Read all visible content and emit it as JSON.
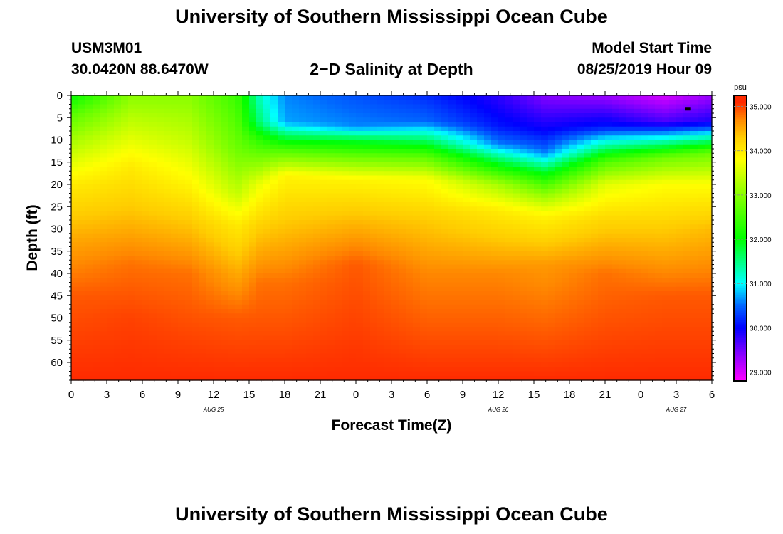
{
  "header": {
    "title_top": "University of Southern Mississippi Ocean Cube",
    "title_bottom": "University of Southern Mississippi Ocean Cube",
    "station_id": "USM3M01",
    "station_coords": "30.0420N 88.6470W",
    "plot_title": "2−D Salinity at Depth",
    "model_start_label": "Model Start Time",
    "model_start_value": "08/25/2019 Hour 09"
  },
  "chart_data": {
    "type": "heatmap",
    "title": "2−D Salinity at Depth",
    "xlabel": "Forecast Time(Z)",
    "ylabel": "Depth (ft)",
    "x_unit": "hours since 08/25 00Z",
    "xlim": [
      0,
      54
    ],
    "ylim": [
      0,
      64
    ],
    "y_inverted": true,
    "x_ticks": [
      {
        "x": 0,
        "label": "0"
      },
      {
        "x": 3,
        "label": "3"
      },
      {
        "x": 6,
        "label": "6"
      },
      {
        "x": 9,
        "label": "9"
      },
      {
        "x": 12,
        "label": "12"
      },
      {
        "x": 15,
        "label": "15"
      },
      {
        "x": 18,
        "label": "18"
      },
      {
        "x": 21,
        "label": "21"
      },
      {
        "x": 24,
        "label": "0"
      },
      {
        "x": 27,
        "label": "3"
      },
      {
        "x": 30,
        "label": "6"
      },
      {
        "x": 33,
        "label": "9"
      },
      {
        "x": 36,
        "label": "12"
      },
      {
        "x": 39,
        "label": "15"
      },
      {
        "x": 42,
        "label": "18"
      },
      {
        "x": 45,
        "label": "21"
      },
      {
        "x": 48,
        "label": "0"
      },
      {
        "x": 51,
        "label": "3"
      },
      {
        "x": 54,
        "label": "6"
      }
    ],
    "date_labels": [
      {
        "x": 12,
        "label": "AUG 25"
      },
      {
        "x": 36,
        "label": "AUG 26"
      },
      {
        "x": 51,
        "label": "AUG 27"
      }
    ],
    "y_ticks": [
      0,
      5,
      10,
      15,
      20,
      25,
      30,
      35,
      40,
      45,
      50,
      55,
      60
    ],
    "colorbar": {
      "unit": "psu",
      "min": 28.8,
      "max": 35.25,
      "tick_values": [
        35,
        34,
        33,
        32,
        31,
        30,
        29
      ],
      "tick_labels": [
        "35.000",
        "34.000",
        "33.000",
        "32.000",
        "31.000",
        "30.000",
        "29.000"
      ],
      "stops": [
        {
          "value": 28.8,
          "color": "#ff00ff"
        },
        {
          "value": 29.4,
          "color": "#8800ff"
        },
        {
          "value": 30.0,
          "color": "#0000ff"
        },
        {
          "value": 30.5,
          "color": "#0066ff"
        },
        {
          "value": 31.0,
          "color": "#00ffff"
        },
        {
          "value": 32.0,
          "color": "#00ff00"
        },
        {
          "value": 33.0,
          "color": "#88ff00"
        },
        {
          "value": 33.8,
          "color": "#ffff00"
        },
        {
          "value": 34.3,
          "color": "#ffcc00"
        },
        {
          "value": 34.7,
          "color": "#ff8800"
        },
        {
          "value": 35.1,
          "color": "#ff2a00"
        }
      ]
    },
    "anchor_columns": [
      {
        "t": 0,
        "profile": [
          [
            0,
            32.0
          ],
          [
            4,
            32.6
          ],
          [
            10,
            33.2
          ],
          [
            20,
            34.0
          ],
          [
            32,
            34.5
          ],
          [
            45,
            34.9
          ],
          [
            64,
            35.1
          ]
        ]
      },
      {
        "t": 5,
        "profile": [
          [
            0,
            33.0
          ],
          [
            8,
            33.5
          ],
          [
            16,
            34.0
          ],
          [
            25,
            34.3
          ],
          [
            38,
            34.8
          ],
          [
            50,
            35.0
          ],
          [
            64,
            35.1
          ]
        ]
      },
      {
        "t": 10,
        "profile": [
          [
            0,
            33.0
          ],
          [
            10,
            33.4
          ],
          [
            20,
            33.9
          ],
          [
            28,
            34.3
          ],
          [
            40,
            34.8
          ],
          [
            55,
            35.0
          ],
          [
            64,
            35.1
          ]
        ]
      },
      {
        "t": 14,
        "profile": [
          [
            0,
            32.4
          ],
          [
            12,
            32.8
          ],
          [
            22,
            33.4
          ],
          [
            29,
            34.0
          ],
          [
            40,
            34.5
          ],
          [
            50,
            34.9
          ],
          [
            64,
            35.1
          ]
        ]
      },
      {
        "t": 16,
        "profile": [
          [
            0,
            31.2
          ],
          [
            6,
            31.5
          ],
          [
            10,
            32.3
          ],
          [
            20,
            33.7
          ],
          [
            30,
            34.3
          ],
          [
            42,
            34.8
          ],
          [
            64,
            35.1
          ]
        ]
      },
      {
        "t": 18,
        "profile": [
          [
            0,
            30.6
          ],
          [
            6,
            30.7
          ],
          [
            8,
            31.3
          ],
          [
            12,
            32.5
          ],
          [
            18,
            33.9
          ],
          [
            28,
            34.3
          ],
          [
            42,
            34.8
          ],
          [
            64,
            35.1
          ]
        ]
      },
      {
        "t": 24,
        "profile": [
          [
            0,
            30.4
          ],
          [
            7,
            30.6
          ],
          [
            10,
            31.8
          ],
          [
            14,
            32.8
          ],
          [
            19,
            33.9
          ],
          [
            28,
            34.4
          ],
          [
            38,
            34.9
          ],
          [
            64,
            35.1
          ]
        ]
      },
      {
        "t": 30,
        "profile": [
          [
            0,
            30.2
          ],
          [
            6,
            30.5
          ],
          [
            10,
            31.6
          ],
          [
            14,
            32.7
          ],
          [
            19,
            33.8
          ],
          [
            28,
            34.3
          ],
          [
            40,
            34.7
          ],
          [
            64,
            35.1
          ]
        ]
      },
      {
        "t": 36,
        "profile": [
          [
            0,
            29.8
          ],
          [
            7,
            30.1
          ],
          [
            11,
            30.6
          ],
          [
            15,
            31.8
          ],
          [
            20,
            33.2
          ],
          [
            26,
            34.0
          ],
          [
            40,
            34.7
          ],
          [
            64,
            35.1
          ]
        ]
      },
      {
        "t": 40,
        "profile": [
          [
            0,
            29.4
          ],
          [
            8,
            30.0
          ],
          [
            13,
            30.6
          ],
          [
            17,
            31.8
          ],
          [
            22,
            33.0
          ],
          [
            27,
            33.9
          ],
          [
            38,
            34.6
          ],
          [
            64,
            35.1
          ]
        ]
      },
      {
        "t": 45,
        "profile": [
          [
            0,
            29.3
          ],
          [
            7,
            30.1
          ],
          [
            11,
            31.3
          ],
          [
            15,
            32.6
          ],
          [
            20,
            33.6
          ],
          [
            28,
            34.2
          ],
          [
            40,
            34.8
          ],
          [
            64,
            35.1
          ]
        ]
      },
      {
        "t": 50,
        "profile": [
          [
            0,
            29.0
          ],
          [
            6,
            29.7
          ],
          [
            10,
            31.2
          ],
          [
            14,
            32.8
          ],
          [
            20,
            33.8
          ],
          [
            30,
            34.3
          ],
          [
            45,
            34.9
          ],
          [
            64,
            35.1
          ]
        ]
      },
      {
        "t": 54,
        "profile": [
          [
            0,
            29.3
          ],
          [
            6,
            29.9
          ],
          [
            9,
            31.1
          ],
          [
            13,
            32.8
          ],
          [
            20,
            33.8
          ],
          [
            30,
            34.4
          ],
          [
            45,
            34.9
          ],
          [
            64,
            35.1
          ]
        ]
      }
    ],
    "station_marker": {
      "t": 52,
      "depth": 3
    }
  }
}
